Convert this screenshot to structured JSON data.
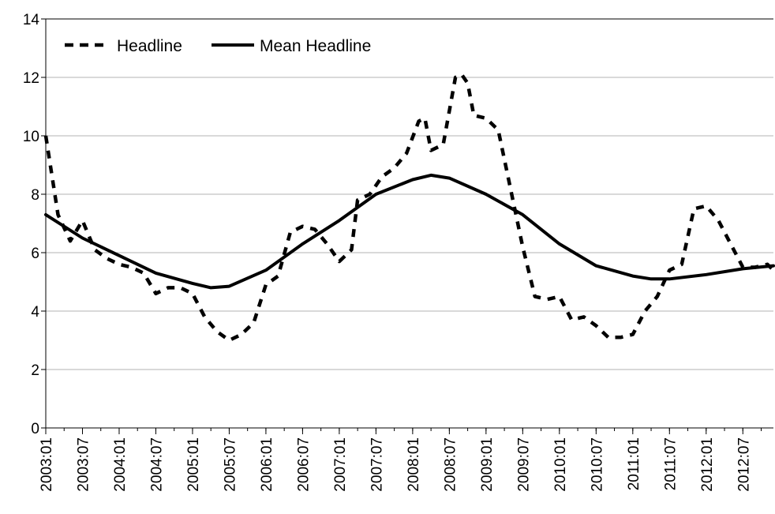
{
  "chart_data": {
    "type": "line",
    "title": "",
    "xlabel": "",
    "ylabel": "",
    "ylim": [
      0,
      14
    ],
    "yticks": [
      0,
      2,
      4,
      6,
      8,
      10,
      12,
      14
    ],
    "xlim": [
      "2003-01",
      "2012-12"
    ],
    "xticks": [
      "2003:01",
      "2003:07",
      "2004:01",
      "2004:07",
      "2005:01",
      "2005:07",
      "2006:01",
      "2006:07",
      "2007:01",
      "2007:07",
      "2008:01",
      "2008:07",
      "2009:01",
      "2009:07",
      "2010:01",
      "2010:07",
      "2011:01",
      "2011:07",
      "2012:01",
      "2012:07"
    ],
    "grid": "horizontal",
    "legend_position": "top-left",
    "series": [
      {
        "name": "Headline",
        "style": "dashed",
        "color": "#000000",
        "x": [
          "2003-01",
          "2003-03",
          "2003-05",
          "2003-07",
          "2003-09",
          "2003-11",
          "2004-01",
          "2004-03",
          "2004-05",
          "2004-07",
          "2004-09",
          "2004-11",
          "2005-01",
          "2005-03",
          "2005-05",
          "2005-07",
          "2005-09",
          "2005-11",
          "2006-01",
          "2006-03",
          "2006-05",
          "2006-07",
          "2006-09",
          "2006-11",
          "2007-01",
          "2007-03",
          "2007-04",
          "2007-06",
          "2007-08",
          "2007-10",
          "2007-12",
          "2008-02",
          "2008-03",
          "2008-04",
          "2008-06",
          "2008-08",
          "2008-09",
          "2008-10",
          "2008-11",
          "2009-01",
          "2009-03",
          "2009-05",
          "2009-07",
          "2009-09",
          "2009-11",
          "2010-01",
          "2010-03",
          "2010-05",
          "2010-07",
          "2010-09",
          "2010-11",
          "2011-01",
          "2011-03",
          "2011-05",
          "2011-07",
          "2011-09",
          "2011-11",
          "2012-01",
          "2012-03",
          "2012-05",
          "2012-07",
          "2012-09",
          "2012-11",
          "2012-12"
        ],
        "values": [
          10.0,
          7.3,
          6.4,
          7.1,
          6.1,
          5.8,
          5.6,
          5.5,
          5.3,
          4.6,
          4.8,
          4.8,
          4.6,
          3.8,
          3.3,
          3.0,
          3.2,
          3.6,
          4.9,
          5.2,
          6.7,
          6.9,
          6.8,
          6.3,
          5.7,
          6.1,
          7.8,
          8.0,
          8.6,
          8.9,
          9.4,
          10.5,
          10.6,
          9.5,
          9.7,
          12.0,
          12.1,
          11.8,
          10.7,
          10.6,
          10.2,
          8.2,
          6.2,
          4.5,
          4.4,
          4.5,
          3.7,
          3.8,
          3.5,
          3.1,
          3.1,
          3.2,
          4.0,
          4.5,
          5.4,
          5.6,
          7.5,
          7.6,
          7.1,
          6.3,
          5.5,
          5.5,
          5.6,
          5.4
        ]
      },
      {
        "name": "Mean Headline",
        "style": "solid",
        "color": "#000000",
        "x": [
          "2003-01",
          "2003-07",
          "2004-01",
          "2004-07",
          "2005-01",
          "2005-04",
          "2005-07",
          "2006-01",
          "2006-07",
          "2007-01",
          "2007-07",
          "2008-01",
          "2008-04",
          "2008-07",
          "2009-01",
          "2009-07",
          "2010-01",
          "2010-07",
          "2011-01",
          "2011-04",
          "2011-07",
          "2012-01",
          "2012-07",
          "2012-12"
        ],
        "values": [
          7.3,
          6.5,
          5.9,
          5.3,
          4.95,
          4.8,
          4.85,
          5.4,
          6.3,
          7.1,
          8.0,
          8.5,
          8.65,
          8.55,
          8.0,
          7.3,
          6.3,
          5.55,
          5.2,
          5.1,
          5.1,
          5.25,
          5.45,
          5.55
        ]
      }
    ]
  }
}
